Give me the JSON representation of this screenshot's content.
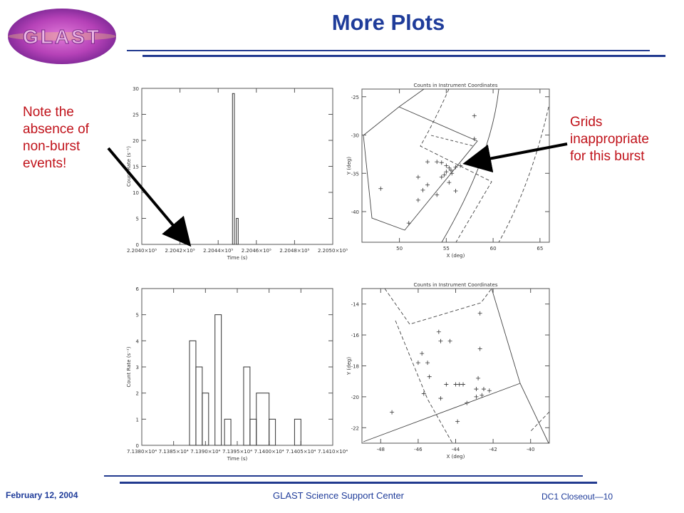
{
  "slide": {
    "title": "More Plots",
    "logo_text": "GLAST",
    "note_left": [
      "Note the",
      "absence of",
      "non-burst",
      "events!"
    ],
    "note_right": [
      "Grids",
      "inappropriate",
      "for this burst"
    ],
    "footer_date": "February 12, 2004",
    "footer_center": "GLAST Science Support Center",
    "footer_right": "DC1 Closeout—10"
  },
  "colors": {
    "title": "#1f3c9a",
    "notes": "#c0121a",
    "rules": "#223a8f"
  },
  "chart_data": [
    {
      "type": "line",
      "xlabel": "Time (s)",
      "ylabel": "Count Rate (s⁻¹)",
      "ylim": [
        0,
        30
      ],
      "xlim": [
        220400,
        220500
      ],
      "x_ticks": [
        "2.2040×10⁵",
        "2.2042×10⁵",
        "2.2044×10⁵",
        "2.2046×10⁵",
        "2.2048×10⁵",
        "2.2050×10⁵"
      ],
      "y_ticks": [
        "0",
        "5",
        "10",
        "15",
        "20",
        "25",
        "30"
      ],
      "bars": [
        {
          "x0": 220447.5,
          "x1": 220448.5,
          "y": 29
        },
        {
          "x0": 220449.5,
          "x1": 220450.5,
          "y": 5
        }
      ]
    },
    {
      "type": "scatter",
      "title": "Counts in Instrument Coordinates",
      "xlabel": "X (deg)",
      "ylabel": "Y (deg)",
      "xlim": [
        46,
        66
      ],
      "ylim": [
        -44,
        -24
      ],
      "x_ticks": [
        "50",
        "55",
        "60",
        "65"
      ],
      "y_ticks": [
        "-40",
        "-35",
        "-30",
        "-25"
      ],
      "points": [
        [
          58,
          -27.5
        ],
        [
          58,
          -30.5
        ],
        [
          53,
          -33.5
        ],
        [
          54,
          -33.5
        ],
        [
          54.5,
          -33.6
        ],
        [
          55,
          -34
        ],
        [
          55.3,
          -34.3
        ],
        [
          55.5,
          -34.6
        ],
        [
          55,
          -34.8
        ],
        [
          55.6,
          -35
        ],
        [
          56,
          -34.2
        ],
        [
          56.5,
          -34
        ],
        [
          54.8,
          -35.2
        ],
        [
          52,
          -35.5
        ],
        [
          53,
          -36.5
        ],
        [
          52.5,
          -37.2
        ],
        [
          55.3,
          -36.2
        ],
        [
          56,
          -37.3
        ],
        [
          54,
          -37.8
        ],
        [
          52,
          -38.5
        ],
        [
          51,
          -41.5
        ],
        [
          48,
          -37
        ],
        [
          54.5,
          -35.5
        ]
      ]
    },
    {
      "type": "line",
      "xlabel": "Time (s)",
      "ylabel": "Count Rate (s⁻¹)",
      "ylim": [
        0,
        6
      ],
      "xlim": [
        71380,
        71410
      ],
      "x_ticks": [
        "7.1380×10⁴",
        "7.1385×10⁴",
        "7.1390×10⁴",
        "7.1395×10⁴",
        "7.1400×10⁴",
        "7.1405×10⁴",
        "7.1410×10⁴"
      ],
      "y_ticks": [
        "0",
        "1",
        "2",
        "3",
        "4",
        "5",
        "6"
      ],
      "bars": [
        {
          "x0": 71387.5,
          "x1": 71388.5,
          "y": 4
        },
        {
          "x0": 71388.5,
          "x1": 71389.5,
          "y": 3
        },
        {
          "x0": 71389.5,
          "x1": 71390.5,
          "y": 2
        },
        {
          "x0": 71391.5,
          "x1": 71392.5,
          "y": 5
        },
        {
          "x0": 71393.0,
          "x1": 71394.0,
          "y": 1
        },
        {
          "x0": 71396.0,
          "x1": 71397.0,
          "y": 3
        },
        {
          "x0": 71397.0,
          "x1": 71398.0,
          "y": 1
        },
        {
          "x0": 71398.0,
          "x1": 71400.0,
          "y": 2
        },
        {
          "x0": 71400.0,
          "x1": 71401.0,
          "y": 1
        },
        {
          "x0": 71404.0,
          "x1": 71405.0,
          "y": 1
        }
      ]
    },
    {
      "type": "scatter",
      "title": "Counts in Instrument Coordinates",
      "xlabel": "X (deg)",
      "ylabel": "Y (deg)",
      "xlim": [
        -49,
        -39
      ],
      "ylim": [
        -23,
        -13
      ],
      "x_ticks": [
        "-48",
        "-46",
        "-44",
        "-42",
        "-40"
      ],
      "y_ticks": [
        "-22",
        "-20",
        "-18",
        "-16",
        "-14"
      ],
      "points": [
        [
          -42.7,
          -14.6
        ],
        [
          -44.9,
          -15.8
        ],
        [
          -44.8,
          -16.4
        ],
        [
          -44.3,
          -16.4
        ],
        [
          -45.8,
          -17.2
        ],
        [
          -46,
          -17.8
        ],
        [
          -45.5,
          -17.8
        ],
        [
          -42.7,
          -16.9
        ],
        [
          -45.4,
          -18.7
        ],
        [
          -44.5,
          -19.2
        ],
        [
          -44,
          -19.2
        ],
        [
          -43.8,
          -19.2
        ],
        [
          -43.6,
          -19.2
        ],
        [
          -42.8,
          -18.8
        ],
        [
          -42.9,
          -19.5
        ],
        [
          -42.5,
          -19.5
        ],
        [
          -42.2,
          -19.6
        ],
        [
          -42.6,
          -19.9
        ],
        [
          -42.9,
          -20
        ],
        [
          -45.7,
          -19.8
        ],
        [
          -44.8,
          -20.1
        ],
        [
          -43.4,
          -20.4
        ],
        [
          -47.4,
          -21
        ],
        [
          -43.9,
          -21.6
        ]
      ]
    }
  ]
}
